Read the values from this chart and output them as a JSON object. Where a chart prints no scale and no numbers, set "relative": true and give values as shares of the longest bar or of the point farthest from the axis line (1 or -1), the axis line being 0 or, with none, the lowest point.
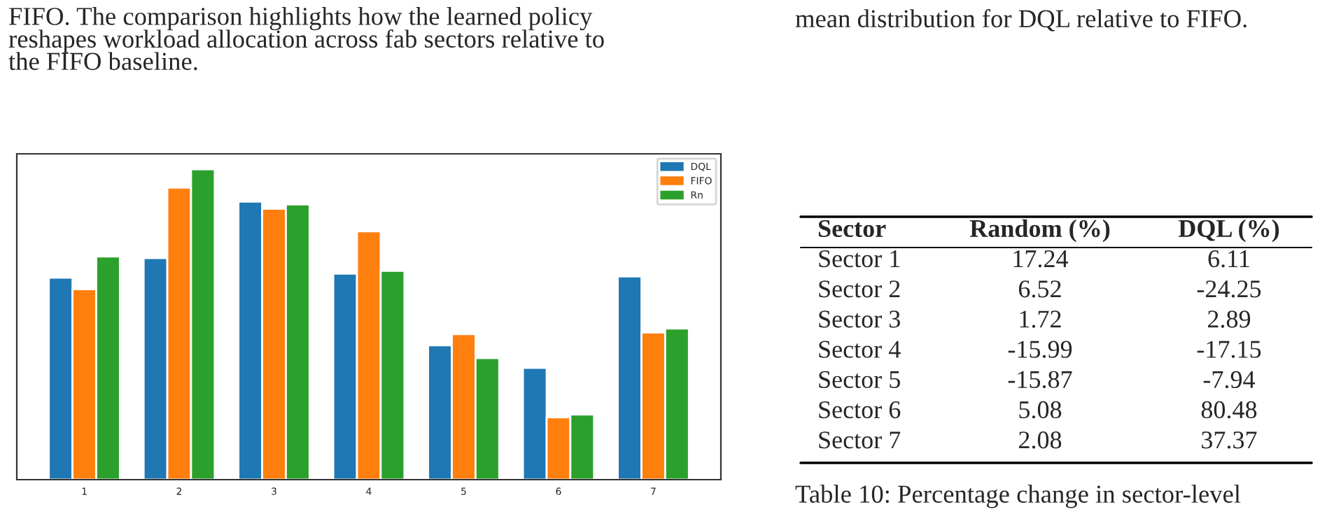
{
  "chart_data": [
    {
      "type": "bar",
      "relative": true,
      "categories": [
        "1",
        "2",
        "3",
        "4",
        "5",
        "6",
        "7"
      ],
      "legend": "top right",
      "grid": false,
      "series": [
        {
          "name": "DQL",
          "color": "#1f77b4",
          "values": [
            0.651,
            0.714,
            0.896,
            0.664,
            0.433,
            0.36,
            0.655
          ]
        },
        {
          "name": "FIFO",
          "color": "#ff7f0e",
          "values": [
            0.614,
            0.941,
            0.873,
            0.8,
            0.469,
            0.201,
            0.474
          ]
        },
        {
          "name": "Rn",
          "color": "#2ca02c",
          "values": [
            0.719,
            1,
            0.887,
            0.673,
            0.392,
            0.21,
            0.487
          ]
        }
      ],
      "annotations": [
        "FIFO. The comparison highlights how the learned policy\nreshapes workload allocation across fab sectors relative to\nthe FIFO baseline."
      ]
    },
    {
      "type": "other",
      "categories": [
        "Sector",
        "Random (%)",
        "DQL (%)"
      ],
      "y_categories": [
        "Sector 1",
        "Sector 2",
        "Sector 3",
        "Sector 4",
        "Sector 5",
        "Sector 6",
        "Sector 7"
      ],
      "cell_labels": [
        [
          "17.24",
          "6.11"
        ],
        [
          "6.52",
          "-24.25"
        ],
        [
          "1.72",
          "2.89"
        ],
        [
          "-15.99",
          "-17.15"
        ],
        [
          "-15.87",
          "-7.94"
        ],
        [
          "5.08",
          "80.48"
        ],
        [
          "2.08",
          "37.37"
        ]
      ],
      "annotations": [
        "mean distribution for DQL relative to FIFO.",
        "Table 10: Percentage change in sector-level"
      ]
    }
  ]
}
